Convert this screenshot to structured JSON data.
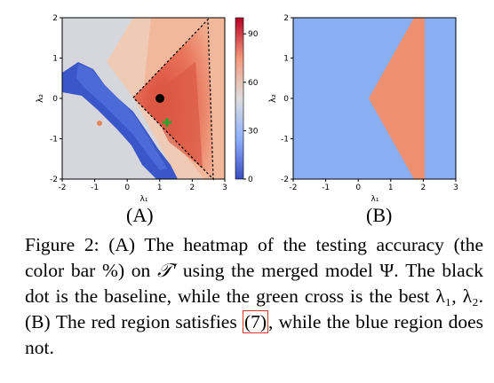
{
  "figure": {
    "panel_a_label": "(A)",
    "panel_b_label": "(B)",
    "caption": {
      "lead": "Figure 2:",
      "text1": " (A) The heatmap of the testing accuracy (the color bar %) on ",
      "symbol_t": "𝒯′",
      "text2": " using the merged model Ψ. The black dot is the baseline, while the green cross is the best λ₁, λ₂. (B) The red region satisfies ",
      "cite": "(7)",
      "text3": ", while the blue region does not."
    }
  },
  "chart_data": [
    {
      "type": "heatmap",
      "panel": "(A)",
      "xlabel": "λ₁",
      "ylabel": "λ₂",
      "xlim": [
        -2,
        3
      ],
      "ylim": [
        -2,
        2
      ],
      "xticks": [
        "-2",
        "-1",
        "0",
        "1",
        "2",
        "3"
      ],
      "yticks": [
        "-2",
        "-1",
        "0",
        "1",
        "2"
      ],
      "colorbar": {
        "ticks": [
          "0",
          "30",
          "60",
          "90"
        ],
        "range": [
          0,
          100
        ],
        "colormap": "coolwarm"
      },
      "baseline_point": {
        "x": 1.0,
        "y": 0.0,
        "color": "#000000"
      },
      "best_point": {
        "x": 1.2,
        "y": -0.6,
        "color": "#2ca02c"
      },
      "dashed_triangle": [
        [
          0.1,
          0.0
        ],
        [
          2.4,
          1.9
        ],
        [
          2.5,
          -1.9
        ]
      ]
    },
    {
      "type": "area",
      "panel": "(B)",
      "xlabel": "λ₁",
      "ylabel": "λ₂",
      "xlim": [
        -2,
        3
      ],
      "ylim": [
        -2,
        2
      ],
      "xticks": [
        "-2",
        "-1",
        "0",
        "1",
        "2",
        "3"
      ],
      "yticks": [
        "-2",
        "-1",
        "0",
        "1",
        "2"
      ],
      "colors": {
        "satisfied": "#ef9070",
        "not_satisfied": "#8aaef2"
      },
      "region_satisfied": [
        [
          0.3,
          0.0
        ],
        [
          1.7,
          2.0
        ],
        [
          2.0,
          2.0
        ],
        [
          2.0,
          -2.0
        ],
        [
          1.7,
          -2.0
        ]
      ]
    }
  ]
}
